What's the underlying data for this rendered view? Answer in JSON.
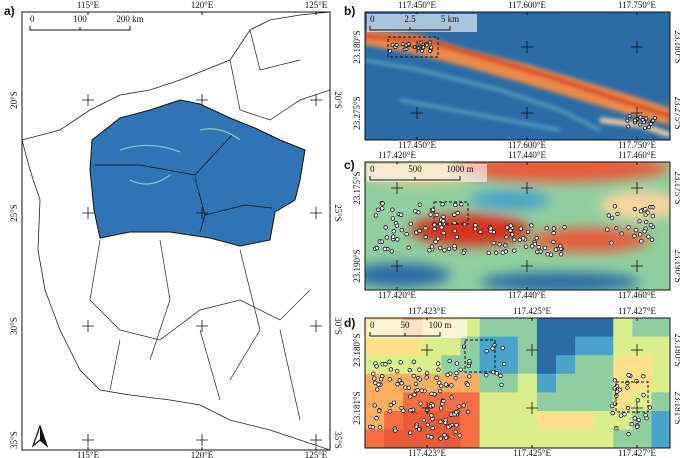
{
  "panels": [
    {
      "label": "a)",
      "top_ticks": [
        "115°E",
        "120°E",
        "125°E"
      ],
      "bottom_ticks": [
        "115°E",
        "120°E",
        "125°E"
      ],
      "left_ticks": [
        "20°S",
        "25°S",
        "30°S",
        "35°S"
      ],
      "right_ticks": [
        "20°S",
        "25°S",
        "30°S",
        "35°S"
      ],
      "scale_labels": [
        "0",
        "100",
        "200 km"
      ]
    },
    {
      "label": "b)",
      "top_ticks": [
        "117.450°E",
        "117.600°E",
        "117.750°E"
      ],
      "bottom_ticks": [
        "117.450°E",
        "117.600°E",
        "117.750°E"
      ],
      "left_ticks": [
        "23.180°S",
        "23.275°S"
      ],
      "right_ticks": [
        "23.180°S",
        "23.275°S"
      ],
      "scale_labels": [
        "0",
        "2.5",
        "5 km"
      ]
    },
    {
      "label": "c)",
      "top_ticks": [
        "117.420°E",
        "117.440°E",
        "117.460°E"
      ],
      "bottom_ticks": [
        "117.420°E",
        "117.440°E",
        "117.460°E"
      ],
      "left_ticks": [
        "23.175°S",
        "23.190°S"
      ],
      "right_ticks": [
        "23.175°S",
        "23.190°S"
      ],
      "scale_labels": [
        "0",
        "500",
        "1000 m"
      ]
    },
    {
      "label": "d)",
      "top_ticks": [
        "117.423°E",
        "117.425°E",
        "117.427°E"
      ],
      "bottom_ticks": [
        "117.423°E",
        "117.425°E",
        "117.427°E"
      ],
      "left_ticks": [
        "23.180°S",
        "23.181°S"
      ],
      "right_ticks": [
        "23.180°S",
        "23.181°S"
      ],
      "scale_labels": [
        "0",
        "50",
        "100 m"
      ]
    }
  ]
}
